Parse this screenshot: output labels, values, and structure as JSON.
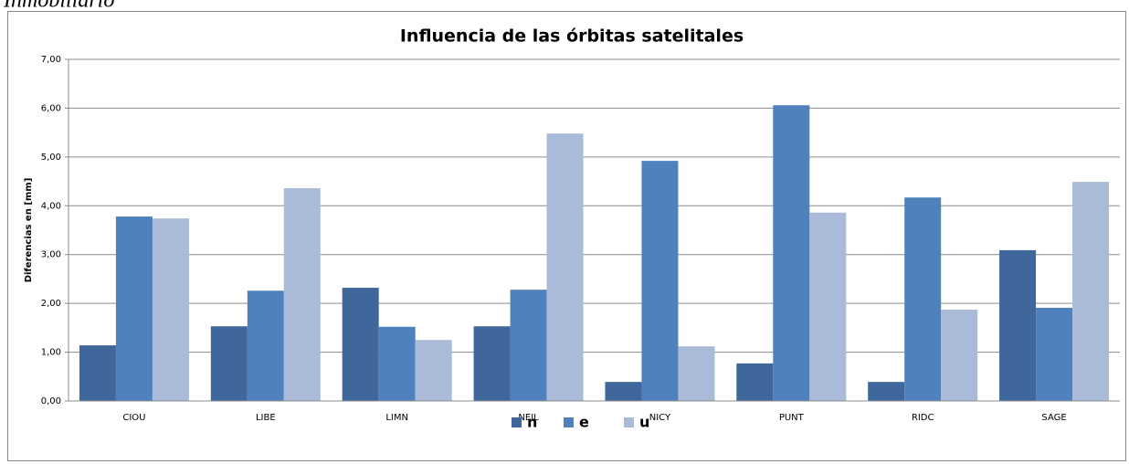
{
  "header_text": "Inmobiliario",
  "chart_data": {
    "type": "bar",
    "title": "Influencia de las órbitas satelitales",
    "y_label": "Diferencias en [mm]",
    "categories": [
      "CIOU",
      "LIBE",
      "LIMN",
      "NEIL",
      "NICY",
      "PUNT",
      "RIDC",
      "SAGE"
    ],
    "series": [
      {
        "name": "n",
        "color": "#3f679c",
        "values": [
          1.14,
          1.53,
          2.32,
          1.53,
          0.39,
          0.77,
          0.39,
          3.09
        ]
      },
      {
        "name": "e",
        "color": "#4f81bd",
        "values": [
          3.78,
          2.26,
          1.52,
          2.28,
          4.92,
          6.06,
          4.17,
          1.91
        ]
      },
      {
        "name": "u",
        "color": "#aabbd9",
        "values": [
          3.74,
          4.36,
          1.25,
          5.48,
          1.12,
          3.86,
          1.87,
          4.49
        ]
      }
    ],
    "ylim": [
      0,
      7
    ],
    "yticks": [
      {
        "value": 0,
        "label": "0,00"
      },
      {
        "value": 1,
        "label": "1,00"
      },
      {
        "value": 2,
        "label": "2,00"
      },
      {
        "value": 3,
        "label": "3,00"
      },
      {
        "value": 4,
        "label": "4,00"
      },
      {
        "value": 5,
        "label": "5,00"
      },
      {
        "value": 6,
        "label": "6,00"
      },
      {
        "value": 7,
        "label": "7,00"
      }
    ],
    "grid": true,
    "legend": "bottom"
  }
}
